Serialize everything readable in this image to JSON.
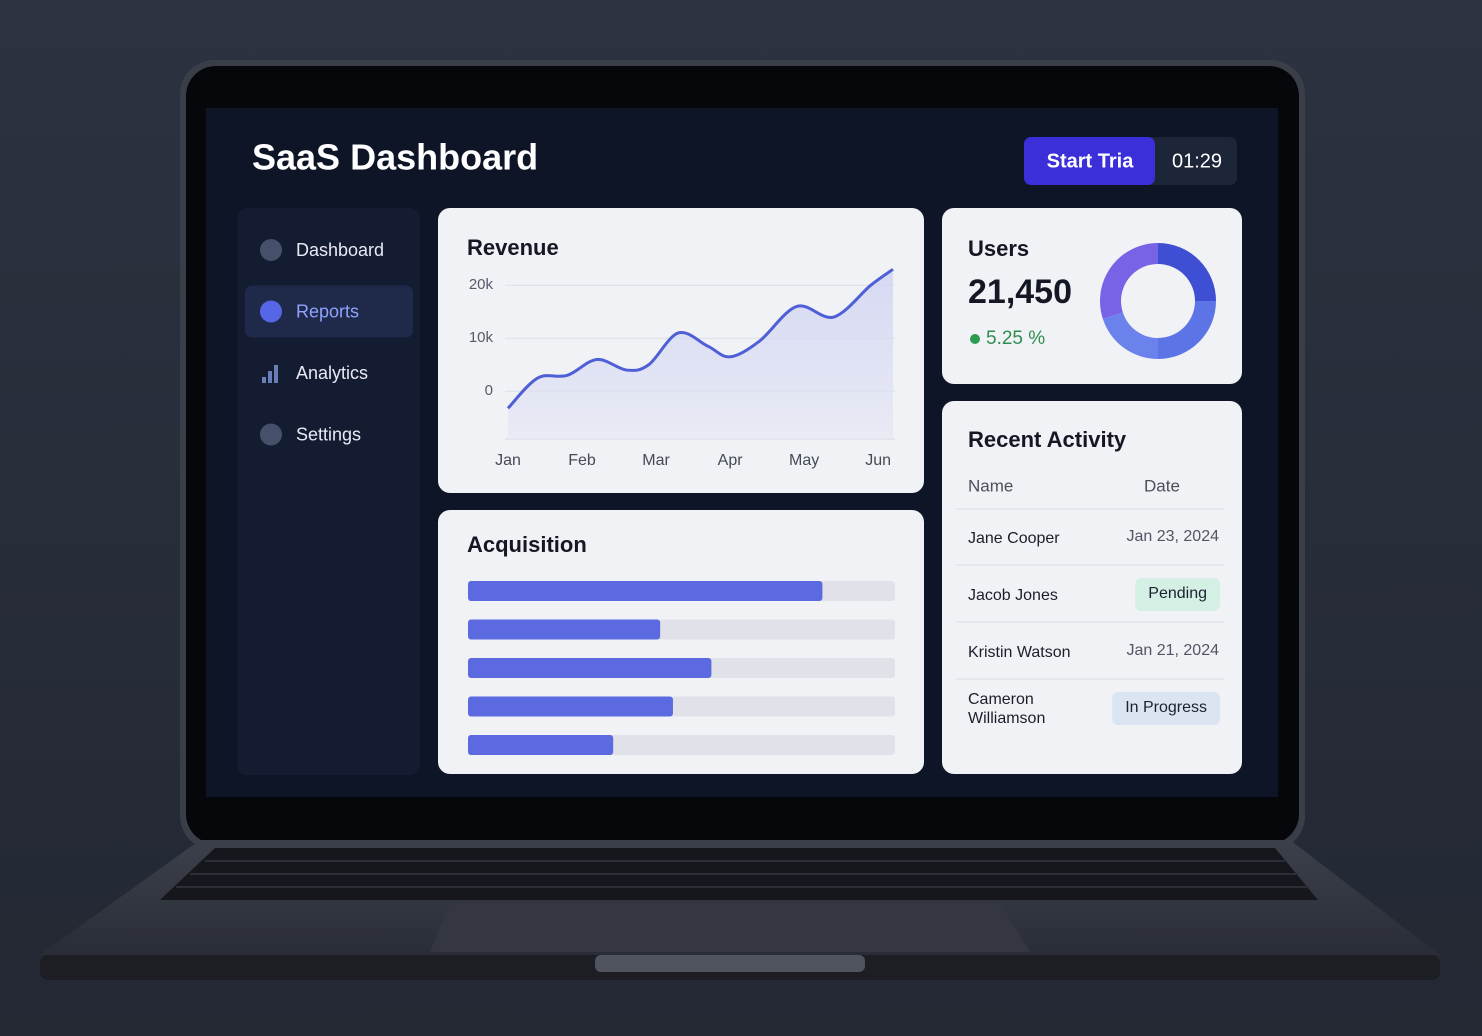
{
  "header": {
    "title": "SaaS Dashboard",
    "button": "Start Tria",
    "timer": "01:29"
  },
  "sidebar": {
    "items": [
      "Dashboard",
      "Reports",
      "Analytics",
      "Settings"
    ],
    "active": 1
  },
  "users": {
    "title": "Users",
    "value": "21,450",
    "change": "5.25 %"
  },
  "activity": {
    "title": "Recent Activity",
    "columns": [
      "Name",
      "Date"
    ],
    "rows": [
      {
        "name": "Jane Cooper",
        "date": "Jan 23, 2024"
      },
      {
        "name": "Jacob Jones",
        "status": "Pending"
      },
      {
        "name": "Kristin Watson",
        "date": "Jan 21, 2024"
      },
      {
        "name": "Cameron Williamson",
        "status": "In Progress"
      }
    ]
  },
  "chart_data": [
    {
      "type": "line",
      "title": "Revenue",
      "x": [
        0,
        0.4,
        0.8,
        1.2,
        1.6,
        1.9,
        2.3,
        2.7,
        3.0,
        3.4,
        3.9,
        4.4,
        4.9,
        5.2
      ],
      "values": [
        -3200,
        2500,
        3000,
        6000,
        4000,
        5000,
        11000,
        8500,
        6500,
        9500,
        16000,
        14000,
        20000,
        23000
      ],
      "color": "#4f5fd6",
      "xlim": [
        0,
        5.2
      ],
      "xticks": [
        {
          "value": 0,
          "label": "Jan"
        },
        {
          "value": 1,
          "label": "Feb"
        },
        {
          "value": 2,
          "label": "Mar"
        },
        {
          "value": 3,
          "label": "Apr"
        },
        {
          "value": 4,
          "label": "May"
        },
        {
          "value": 5,
          "label": "Jun"
        }
      ],
      "ylim": [
        -9000,
        24000
      ],
      "yticks": [
        0,
        {
          "value": 10000,
          "label": "10k"
        },
        {
          "value": 20000,
          "label": "20k"
        }
      ],
      "grid": true
    },
    {
      "type": "hbar",
      "title": "Acquisition",
      "values": [
        83,
        45,
        57,
        48,
        34
      ],
      "xlim": [
        0,
        100
      ],
      "color": "#5b6ae0"
    },
    {
      "type": "pie",
      "values": [
        25,
        25,
        20,
        30
      ],
      "colors": [
        "#3f4fd3",
        "#5d74e6",
        "#6b82ec",
        "#7863e6"
      ]
    }
  ]
}
